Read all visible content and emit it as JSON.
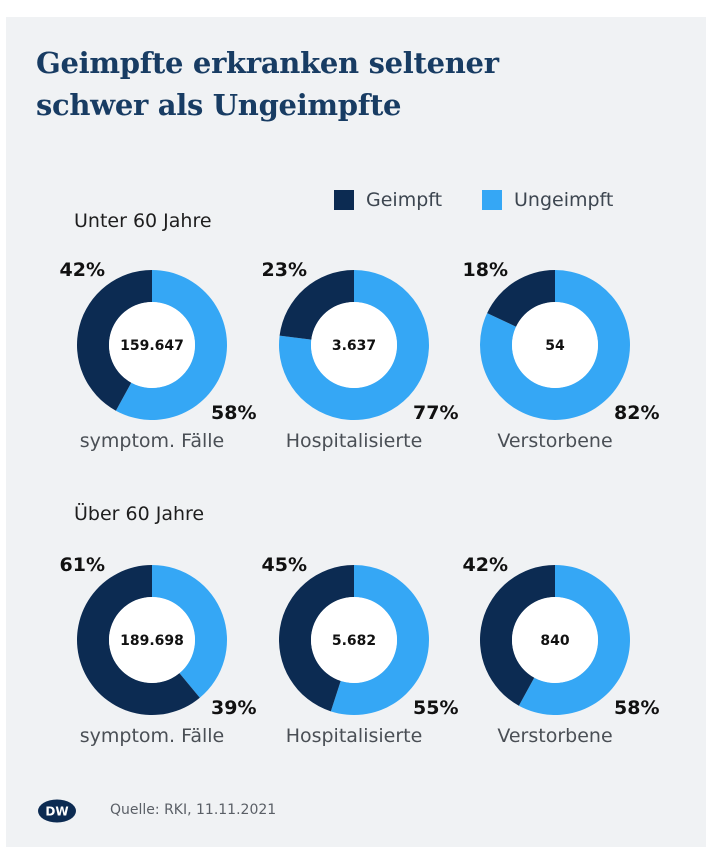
{
  "title_line1": "Geimpfte erkranken seltener",
  "title_line2": "schwer als Ungeimpfte",
  "legend": [
    {
      "label": "Geimpft",
      "color": "#0c2b52"
    },
    {
      "label": "Ungeimpft",
      "color": "#35a7f5"
    }
  ],
  "source": "Quelle: RKI, 11.11.2021",
  "logo_text": "DW",
  "chart_data": [
    {
      "type": "pie",
      "group": "Unter 60 Jahre",
      "title": "symptom. Fälle",
      "total": "159.647",
      "labels": [
        "Geimpft",
        "Ungeimpft"
      ],
      "values": [
        42,
        58
      ],
      "value_labels": [
        "42%",
        "58%"
      ]
    },
    {
      "type": "pie",
      "group": "Unter 60 Jahre",
      "title": "Hospitalisierte",
      "total": "3.637",
      "labels": [
        "Geimpft",
        "Ungeimpft"
      ],
      "values": [
        23,
        77
      ],
      "value_labels": [
        "23%",
        "77%"
      ]
    },
    {
      "type": "pie",
      "group": "Unter 60 Jahre",
      "title": "Verstorbene",
      "total": "54",
      "labels": [
        "Geimpft",
        "Ungeimpft"
      ],
      "values": [
        18,
        82
      ],
      "value_labels": [
        "18%",
        "82%"
      ]
    },
    {
      "type": "pie",
      "group": "Über 60 Jahre",
      "title": "symptom. Fälle",
      "total": "189.698",
      "labels": [
        "Geimpft",
        "Ungeimpft"
      ],
      "values": [
        61,
        39
      ],
      "value_labels": [
        "61%",
        "39%"
      ]
    },
    {
      "type": "pie",
      "group": "Über 60 Jahre",
      "title": "Hospitalisierte",
      "total": "5.682",
      "labels": [
        "Geimpft",
        "Ungeimpft"
      ],
      "values": [
        45,
        55
      ],
      "value_labels": [
        "45%",
        "55%"
      ]
    },
    {
      "type": "pie",
      "group": "Über 60 Jahre",
      "title": "Verstorbene",
      "total": "840",
      "labels": [
        "Geimpft",
        "Ungeimpft"
      ],
      "values": [
        42,
        58
      ],
      "value_labels": [
        "42%",
        "58%"
      ]
    }
  ]
}
